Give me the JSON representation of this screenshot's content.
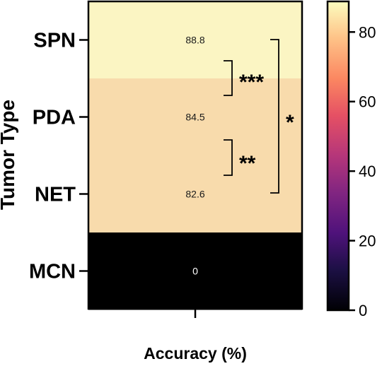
{
  "chart_data": {
    "type": "heatmap",
    "xlabel": "Accuracy (%)",
    "ylabel": "Tumor Type",
    "categories": [
      "SPN",
      "PDA",
      "NET",
      "MCN"
    ],
    "values": [
      88.8,
      84.5,
      82.6,
      0
    ],
    "value_labels": [
      "88.8",
      "84.5",
      "82.6",
      "0"
    ],
    "colorbar": {
      "colormap": "magma",
      "range": [
        0,
        88.8
      ],
      "ticks": [
        0,
        20,
        40,
        60,
        80
      ],
      "tick_labels": [
        "0",
        "20",
        "40",
        "60",
        "80"
      ]
    },
    "significance": [
      {
        "between": [
          "SPN",
          "PDA"
        ],
        "label": "***"
      },
      {
        "between": [
          "PDA",
          "NET"
        ],
        "label": "**"
      },
      {
        "between": [
          "SPN",
          "NET"
        ],
        "label": "*"
      }
    ]
  }
}
